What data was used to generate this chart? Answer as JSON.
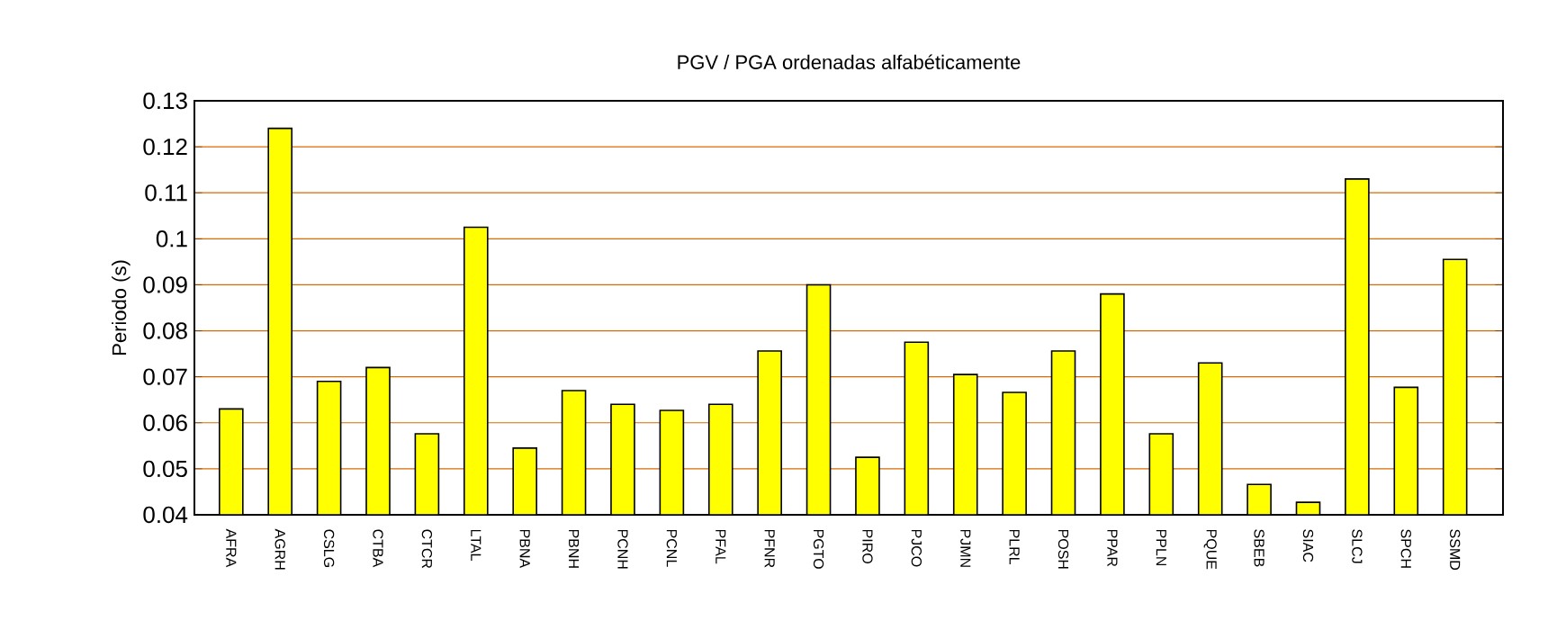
{
  "chart_data": {
    "type": "bar",
    "title": "PGV / PGA ordenadas alfabéticamente",
    "ylabel": "Periodo (s)",
    "categories": [
      "AFRA",
      "AGRH",
      "CSLG",
      "CTBA",
      "CTCR",
      "LTAL",
      "PBNA",
      "PBNH",
      "PCNH",
      "PCNL",
      "PFAL",
      "PFNR",
      "PGTO",
      "PIRO",
      "PJCO",
      "PJMN",
      "PLRL",
      "POSH",
      "PPAR",
      "PPLN",
      "PQUE",
      "SBEB",
      "SIAC",
      "SLCJ",
      "SPCH",
      "SSMD"
    ],
    "values": [
      0.063,
      0.124,
      0.069,
      0.072,
      0.0576,
      0.1025,
      0.0545,
      0.067,
      0.064,
      0.0627,
      0.064,
      0.0756,
      0.09,
      0.0525,
      0.0775,
      0.0705,
      0.0666,
      0.0756,
      0.088,
      0.0576,
      0.073,
      0.0466,
      0.0427,
      0.113,
      0.0677,
      0.0955
    ],
    "color": "#ffff00",
    "ylim": [
      0.04,
      0.13
    ],
    "yticks": [
      0.04,
      0.05,
      0.06,
      0.07,
      0.08,
      0.09,
      0.1,
      0.11,
      0.12,
      0.13
    ],
    "grid": "y"
  }
}
